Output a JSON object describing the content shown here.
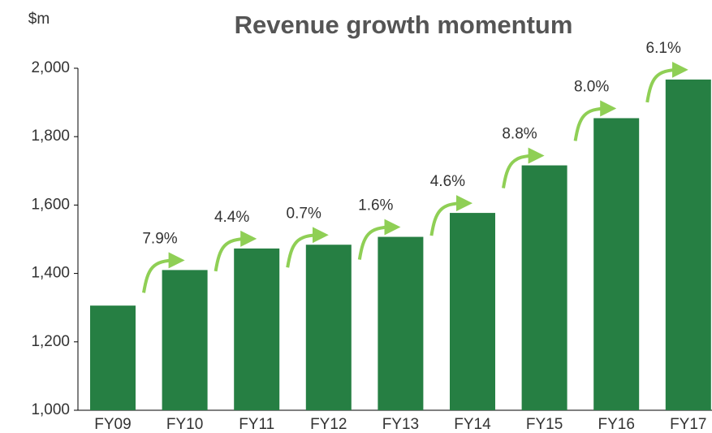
{
  "chart_data": {
    "type": "bar",
    "title": "Revenue growth momentum",
    "y_unit": "$m",
    "categories": [
      "FY09",
      "FY10",
      "FY11",
      "FY12",
      "FY13",
      "FY14",
      "FY15",
      "FY16",
      "FY17"
    ],
    "values": [
      1306,
      1410,
      1473,
      1484,
      1507,
      1577,
      1716,
      1854,
      1967
    ],
    "color": "#267f43",
    "growth_labels": [
      "7.9%",
      "4.4%",
      "0.7%",
      "1.6%",
      "4.6%",
      "8.8%",
      "8.0%",
      "6.1%"
    ],
    "arrow_color": "#8fcf55",
    "ylim": [
      1000,
      2000
    ],
    "yticks": [
      {
        "value": 1000,
        "label": "1,000"
      },
      {
        "value": 1200,
        "label": "1,200"
      },
      {
        "value": 1400,
        "label": "1,400"
      },
      {
        "value": 1600,
        "label": "1,600"
      },
      {
        "value": 1800,
        "label": "1,800"
      },
      {
        "value": 2000,
        "label": "2,000"
      }
    ],
    "grid": false
  }
}
